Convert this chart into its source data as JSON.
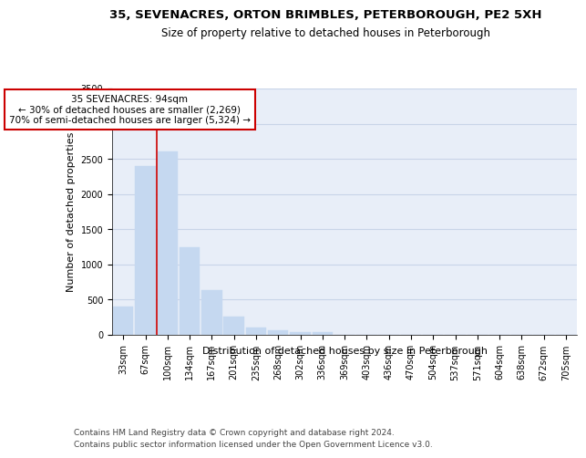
{
  "title_line1": "35, SEVENACRES, ORTON BRIMBLES, PETERBOROUGH, PE2 5XH",
  "title_line2": "Size of property relative to detached houses in Peterborough",
  "xlabel": "Distribution of detached houses by size in Peterborough",
  "ylabel": "Number of detached properties",
  "categories": [
    "33sqm",
    "67sqm",
    "100sqm",
    "134sqm",
    "167sqm",
    "201sqm",
    "235sqm",
    "268sqm",
    "302sqm",
    "336sqm",
    "369sqm",
    "403sqm",
    "436sqm",
    "470sqm",
    "504sqm",
    "537sqm",
    "571sqm",
    "604sqm",
    "638sqm",
    "672sqm",
    "705sqm"
  ],
  "values": [
    400,
    2400,
    2600,
    1250,
    640,
    260,
    110,
    60,
    45,
    35,
    0,
    0,
    0,
    0,
    0,
    0,
    0,
    0,
    0,
    0,
    0
  ],
  "bar_color": "#c5d8f0",
  "bar_edgecolor": "#c5d8f0",
  "annotation_text_line1": "35 SEVENACRES: 94sqm",
  "annotation_text_line2": "← 30% of detached houses are smaller (2,269)",
  "annotation_text_line3": "70% of semi-detached houses are larger (5,324) →",
  "annotation_box_facecolor": "#ffffff",
  "annotation_box_edgecolor": "#cc0000",
  "vline_color": "#cc0000",
  "ylim": [
    0,
    3500
  ],
  "yticks": [
    0,
    500,
    1000,
    1500,
    2000,
    2500,
    3000,
    3500
  ],
  "grid_color": "#c8d4e8",
  "background_color": "#e8eef8",
  "footer_line1": "Contains HM Land Registry data © Crown copyright and database right 2024.",
  "footer_line2": "Contains public sector information licensed under the Open Government Licence v3.0.",
  "title_fontsize": 9.5,
  "subtitle_fontsize": 8.5,
  "axis_label_fontsize": 8,
  "tick_fontsize": 7,
  "annotation_fontsize": 7.5,
  "footer_fontsize": 6.5
}
